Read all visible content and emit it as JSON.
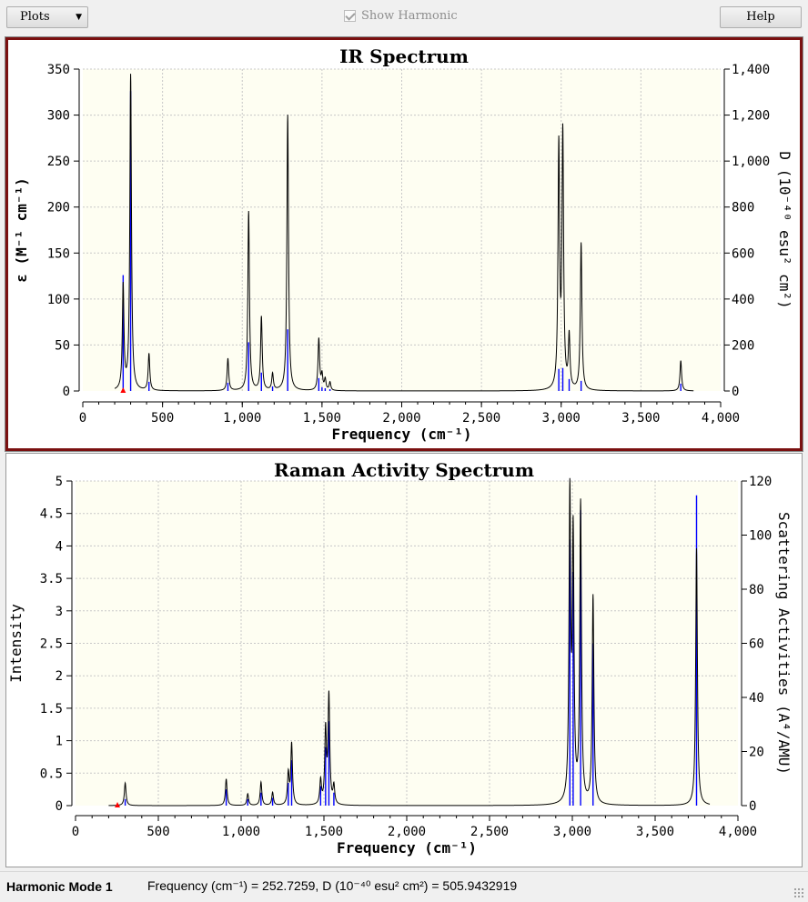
{
  "toolbar": {
    "plots_label": "Plots",
    "show_harmonic_label": "Show Harmonic",
    "help_label": "Help"
  },
  "colors": {
    "spectrum_line": "#000000",
    "stick_bars": "#0000ff",
    "marker": "#ff0000",
    "plot_background": "#fefef2",
    "ir_panel_border": "#7a1010"
  },
  "chart_data": [
    {
      "type": "line",
      "title": "IR Spectrum",
      "xlabel": "Frequency (cm⁻¹)",
      "ylabel": "ε (M⁻¹ cm⁻¹)",
      "ylabel_right": "D (10⁻⁴⁰ esu² cm²)",
      "xlim": [
        0,
        4000
      ],
      "ylim": [
        0,
        350
      ],
      "ylim_right": [
        0,
        1400
      ],
      "xticks": [
        "0",
        "500",
        "1,000",
        "1,500",
        "2,000",
        "2,500",
        "3,000",
        "3,500",
        "4,000"
      ],
      "yticks": [
        "0",
        "50",
        "100",
        "150",
        "200",
        "250",
        "300",
        "350"
      ],
      "yticks_right": [
        "0",
        "200",
        "400",
        "600",
        "800",
        "1,000",
        "1,200",
        "1,400"
      ],
      "grid": true,
      "selected_mode_freq": 253,
      "line_range": [
        200,
        3830
      ],
      "peaks": [
        {
          "x": 253,
          "y": 113,
          "stick": 126
        },
        {
          "x": 300,
          "y": 343,
          "stick": 326
        },
        {
          "x": 415,
          "y": 40,
          "stick": 10
        },
        {
          "x": 910,
          "y": 35,
          "stick": 9
        },
        {
          "x": 1040,
          "y": 195,
          "stick": 53
        },
        {
          "x": 1120,
          "y": 80,
          "stick": 20
        },
        {
          "x": 1190,
          "y": 18,
          "stick": 5
        },
        {
          "x": 1285,
          "y": 300,
          "stick": 67
        },
        {
          "x": 1480,
          "y": 56,
          "stick": 14
        },
        {
          "x": 1500,
          "y": 16,
          "stick": 4
        },
        {
          "x": 1520,
          "y": 12,
          "stick": 3
        },
        {
          "x": 1550,
          "y": 9,
          "stick": 2
        },
        {
          "x": 2985,
          "y": 262,
          "stick": 24
        },
        {
          "x": 3010,
          "y": 275,
          "stick": 25
        },
        {
          "x": 3050,
          "y": 57,
          "stick": 13
        },
        {
          "x": 3125,
          "y": 160,
          "stick": 11
        },
        {
          "x": 3750,
          "y": 33,
          "stick": 8
        }
      ]
    },
    {
      "type": "line",
      "title": "Raman Activity Spectrum",
      "xlabel": "Frequency (cm⁻¹)",
      "ylabel": "Intensity",
      "ylabel_right": "Scattering Activities (A⁴/AMU)",
      "xlim": [
        0,
        4000
      ],
      "ylim": [
        0,
        5
      ],
      "ylim_right": [
        0,
        120
      ],
      "xticks": [
        "0",
        "500",
        "1,000",
        "1,500",
        "2,000",
        "2,500",
        "3,000",
        "3,500",
        "4,000"
      ],
      "yticks": [
        "0",
        "0.5",
        "1",
        "1.5",
        "2",
        "2.5",
        "3",
        "3.5",
        "4",
        "4.5",
        "5"
      ],
      "yticks_right": [
        "0",
        "20",
        "40",
        "60",
        "80",
        "100",
        "120"
      ],
      "grid": true,
      "selected_mode_freq": 253,
      "line_range": [
        200,
        3830
      ],
      "peaks": [
        {
          "x": 300,
          "y": 0.35,
          "stick": 0.1
        },
        {
          "x": 910,
          "y": 0.41,
          "stick": 0.25
        },
        {
          "x": 1040,
          "y": 0.18,
          "stick": 0.1
        },
        {
          "x": 1120,
          "y": 0.36,
          "stick": 0.2
        },
        {
          "x": 1190,
          "y": 0.2,
          "stick": 0.12
        },
        {
          "x": 1285,
          "y": 0.48,
          "stick": 0.35
        },
        {
          "x": 1305,
          "y": 0.94,
          "stick": 0.7
        },
        {
          "x": 1480,
          "y": 0.37,
          "stick": 0.3
        },
        {
          "x": 1510,
          "y": 1.13,
          "stick": 0.9
        },
        {
          "x": 1530,
          "y": 1.66,
          "stick": 1.3
        },
        {
          "x": 1560,
          "y": 0.28,
          "stick": 0.2
        },
        {
          "x": 2985,
          "y": 4.67,
          "stick": 4.1
        },
        {
          "x": 3005,
          "y": 4.0,
          "stick": 3.6
        },
        {
          "x": 3050,
          "y": 4.6,
          "stick": 4.55
        },
        {
          "x": 3125,
          "y": 3.21,
          "stick": 2.5
        },
        {
          "x": 3750,
          "y": 3.96,
          "stick": 4.78
        }
      ]
    }
  ],
  "status": {
    "mode_label": "Harmonic Mode 1",
    "frequency_info": "Frequency (cm⁻¹) = 252.7259, D (10⁻⁴⁰ esu² cm²) = 505.9432919"
  }
}
